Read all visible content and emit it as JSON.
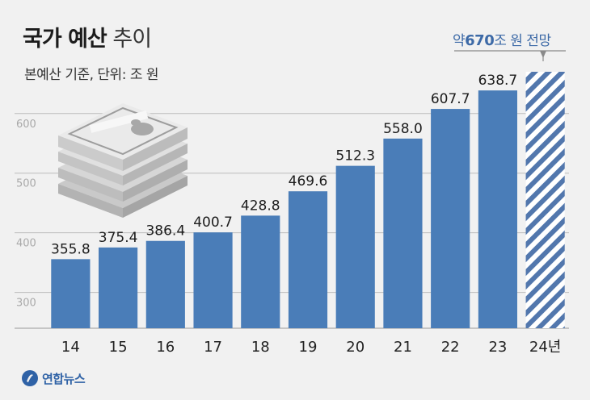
{
  "header": {
    "title_bold": "국가 예산",
    "title_light": "추이",
    "subtitle": "본예산 기준, 단위: 조 원",
    "projection_prefix": "약",
    "projection_value": "670",
    "projection_suffix": "조 원 전망"
  },
  "logo": {
    "text": "연합뉴스",
    "icon": "yonhap-logo-icon"
  },
  "colors": {
    "bar": "#4a7db8",
    "projected_stripe": "#5277ad",
    "grid": "#bcbcbc",
    "background": "#f1f1f1"
  },
  "illustration": {
    "icon": "money-stack-icon"
  },
  "chart_data": {
    "type": "bar",
    "categories": [
      "14",
      "15",
      "16",
      "17",
      "18",
      "19",
      "20",
      "21",
      "22",
      "23",
      "24년"
    ],
    "values": [
      355.8,
      375.4,
      386.4,
      400.7,
      428.8,
      469.6,
      512.3,
      558.0,
      607.7,
      638.7,
      670
    ],
    "value_labels": [
      "355.8",
      "375.4",
      "386.4",
      "400.7",
      "428.8",
      "469.6",
      "512.3",
      "558.0",
      "607.7",
      "638.7",
      ""
    ],
    "projected": [
      false,
      false,
      false,
      false,
      false,
      false,
      false,
      false,
      false,
      false,
      true
    ],
    "title": "국가 예산 추이",
    "subtitle": "본예산 기준, 단위: 조 원",
    "yticks": [
      300,
      400,
      500,
      600
    ],
    "ylim": [
      240,
      670
    ],
    "grid": true,
    "annotation": "약670조 원 전망"
  }
}
